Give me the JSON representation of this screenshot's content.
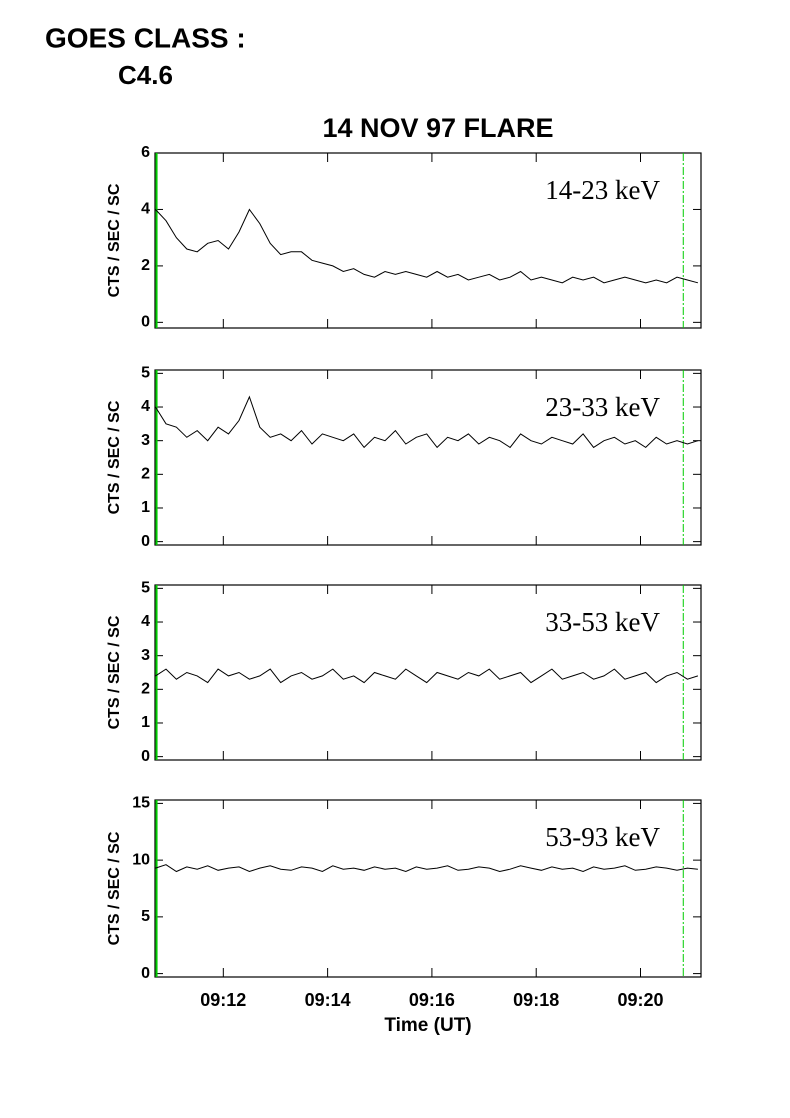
{
  "header": {
    "goes_label": "GOES CLASS :",
    "goes_class": "C4.6"
  },
  "chart_data": [
    {
      "type": "line",
      "title": "14 NOV 97 FLARE",
      "y_label": "CTS / SEC / SC",
      "annotation": "14-23 keV",
      "color": "#000000",
      "marker_color": "#00cc00",
      "markers": [
        10.72,
        20.82
      ],
      "xlim": [
        10.69,
        21.16
      ],
      "ylim": [
        -0.2,
        6
      ],
      "yticks": [
        0,
        2,
        4,
        6
      ],
      "x": [
        10.7,
        10.9,
        11.1,
        11.3,
        11.5,
        11.7,
        11.9,
        12.1,
        12.3,
        12.5,
        12.7,
        12.9,
        13.1,
        13.3,
        13.5,
        13.7,
        13.9,
        14.1,
        14.3,
        14.5,
        14.7,
        14.9,
        15.1,
        15.3,
        15.5,
        15.7,
        15.9,
        16.1,
        16.3,
        16.5,
        16.7,
        16.9,
        17.1,
        17.3,
        17.5,
        17.7,
        17.9,
        18.1,
        18.3,
        18.5,
        18.7,
        18.9,
        19.1,
        19.3,
        19.5,
        19.7,
        19.9,
        20.1,
        20.3,
        20.5,
        20.7,
        20.9,
        21.1
      ],
      "values": [
        4.0,
        3.6,
        3.0,
        2.6,
        2.5,
        2.8,
        2.9,
        2.6,
        3.2,
        4.0,
        3.5,
        2.8,
        2.4,
        2.5,
        2.5,
        2.2,
        2.1,
        2.0,
        1.8,
        1.9,
        1.7,
        1.6,
        1.8,
        1.7,
        1.8,
        1.7,
        1.6,
        1.8,
        1.6,
        1.7,
        1.5,
        1.6,
        1.7,
        1.5,
        1.6,
        1.8,
        1.5,
        1.6,
        1.5,
        1.4,
        1.6,
        1.5,
        1.6,
        1.4,
        1.5,
        1.6,
        1.5,
        1.4,
        1.5,
        1.4,
        1.6,
        1.5,
        1.4
      ]
    },
    {
      "type": "line",
      "y_label": "CTS / SEC / SC",
      "annotation": "23-33 keV",
      "color": "#000000",
      "marker_color": "#00cc00",
      "markers": [
        10.72,
        20.82
      ],
      "xlim": [
        10.69,
        21.16
      ],
      "ylim": [
        -0.1,
        5.1
      ],
      "yticks": [
        0,
        1,
        2,
        3,
        4,
        5
      ],
      "x": [
        10.7,
        10.9,
        11.1,
        11.3,
        11.5,
        11.7,
        11.9,
        12.1,
        12.3,
        12.5,
        12.7,
        12.9,
        13.1,
        13.3,
        13.5,
        13.7,
        13.9,
        14.1,
        14.3,
        14.5,
        14.7,
        14.9,
        15.1,
        15.3,
        15.5,
        15.7,
        15.9,
        16.1,
        16.3,
        16.5,
        16.7,
        16.9,
        17.1,
        17.3,
        17.5,
        17.7,
        17.9,
        18.1,
        18.3,
        18.5,
        18.7,
        18.9,
        19.1,
        19.3,
        19.5,
        19.7,
        19.9,
        20.1,
        20.3,
        20.5,
        20.7,
        20.9,
        21.1
      ],
      "values": [
        4.0,
        3.5,
        3.4,
        3.1,
        3.3,
        3.0,
        3.4,
        3.2,
        3.6,
        4.3,
        3.4,
        3.1,
        3.2,
        3.0,
        3.3,
        2.9,
        3.2,
        3.1,
        3.0,
        3.2,
        2.8,
        3.1,
        3.0,
        3.3,
        2.9,
        3.1,
        3.2,
        2.8,
        3.1,
        3.0,
        3.2,
        2.9,
        3.1,
        3.0,
        2.8,
        3.2,
        3.0,
        2.9,
        3.1,
        3.0,
        2.9,
        3.2,
        2.8,
        3.0,
        3.1,
        2.9,
        3.0,
        2.8,
        3.1,
        2.9,
        3.0,
        2.9,
        3.0
      ]
    },
    {
      "type": "line",
      "y_label": "CTS / SEC / SC",
      "annotation": "33-53 keV",
      "color": "#000000",
      "marker_color": "#00cc00",
      "markers": [
        10.72,
        20.82
      ],
      "xlim": [
        10.69,
        21.16
      ],
      "ylim": [
        -0.1,
        5.1
      ],
      "yticks": [
        0,
        1,
        2,
        3,
        4,
        5
      ],
      "x": [
        10.7,
        10.9,
        11.1,
        11.3,
        11.5,
        11.7,
        11.9,
        12.1,
        12.3,
        12.5,
        12.7,
        12.9,
        13.1,
        13.3,
        13.5,
        13.7,
        13.9,
        14.1,
        14.3,
        14.5,
        14.7,
        14.9,
        15.1,
        15.3,
        15.5,
        15.7,
        15.9,
        16.1,
        16.3,
        16.5,
        16.7,
        16.9,
        17.1,
        17.3,
        17.5,
        17.7,
        17.9,
        18.1,
        18.3,
        18.5,
        18.7,
        18.9,
        19.1,
        19.3,
        19.5,
        19.7,
        19.9,
        20.1,
        20.3,
        20.5,
        20.7,
        20.9,
        21.1
      ],
      "values": [
        2.4,
        2.6,
        2.3,
        2.5,
        2.4,
        2.2,
        2.6,
        2.4,
        2.5,
        2.3,
        2.4,
        2.6,
        2.2,
        2.4,
        2.5,
        2.3,
        2.4,
        2.6,
        2.3,
        2.4,
        2.2,
        2.5,
        2.4,
        2.3,
        2.6,
        2.4,
        2.2,
        2.5,
        2.4,
        2.3,
        2.5,
        2.4,
        2.6,
        2.3,
        2.4,
        2.5,
        2.2,
        2.4,
        2.6,
        2.3,
        2.4,
        2.5,
        2.3,
        2.4,
        2.6,
        2.3,
        2.4,
        2.5,
        2.2,
        2.4,
        2.5,
        2.3,
        2.4
      ]
    },
    {
      "type": "line",
      "y_label": "CTS / SEC / SC",
      "annotation": "53-93 keV",
      "x_label": "Time (UT)",
      "color": "#000000",
      "marker_color": "#00cc00",
      "markers": [
        10.72,
        20.82
      ],
      "xlim": [
        10.69,
        21.16
      ],
      "ylim": [
        -0.3,
        15.3
      ],
      "yticks": [
        0,
        5,
        10,
        15
      ],
      "xticks": [
        {
          "value": 12,
          "label": "09:12"
        },
        {
          "value": 14,
          "label": "09:14"
        },
        {
          "value": 16,
          "label": "09:16"
        },
        {
          "value": 18,
          "label": "09:18"
        },
        {
          "value": 20,
          "label": "09:20"
        }
      ],
      "x": [
        10.7,
        10.9,
        11.1,
        11.3,
        11.5,
        11.7,
        11.9,
        12.1,
        12.3,
        12.5,
        12.7,
        12.9,
        13.1,
        13.3,
        13.5,
        13.7,
        13.9,
        14.1,
        14.3,
        14.5,
        14.7,
        14.9,
        15.1,
        15.3,
        15.5,
        15.7,
        15.9,
        16.1,
        16.3,
        16.5,
        16.7,
        16.9,
        17.1,
        17.3,
        17.5,
        17.7,
        17.9,
        18.1,
        18.3,
        18.5,
        18.7,
        18.9,
        19.1,
        19.3,
        19.5,
        19.7,
        19.9,
        20.1,
        20.3,
        20.5,
        20.7,
        20.9,
        21.1
      ],
      "values": [
        9.3,
        9.6,
        9.0,
        9.4,
        9.2,
        9.5,
        9.1,
        9.3,
        9.4,
        9.0,
        9.3,
        9.5,
        9.2,
        9.1,
        9.4,
        9.3,
        9.0,
        9.5,
        9.2,
        9.3,
        9.1,
        9.4,
        9.2,
        9.3,
        9.0,
        9.4,
        9.2,
        9.3,
        9.5,
        9.1,
        9.2,
        9.4,
        9.3,
        9.0,
        9.2,
        9.5,
        9.3,
        9.1,
        9.4,
        9.2,
        9.3,
        9.0,
        9.4,
        9.2,
        9.3,
        9.5,
        9.1,
        9.2,
        9.4,
        9.3,
        9.1,
        9.3,
        9.2
      ]
    }
  ]
}
